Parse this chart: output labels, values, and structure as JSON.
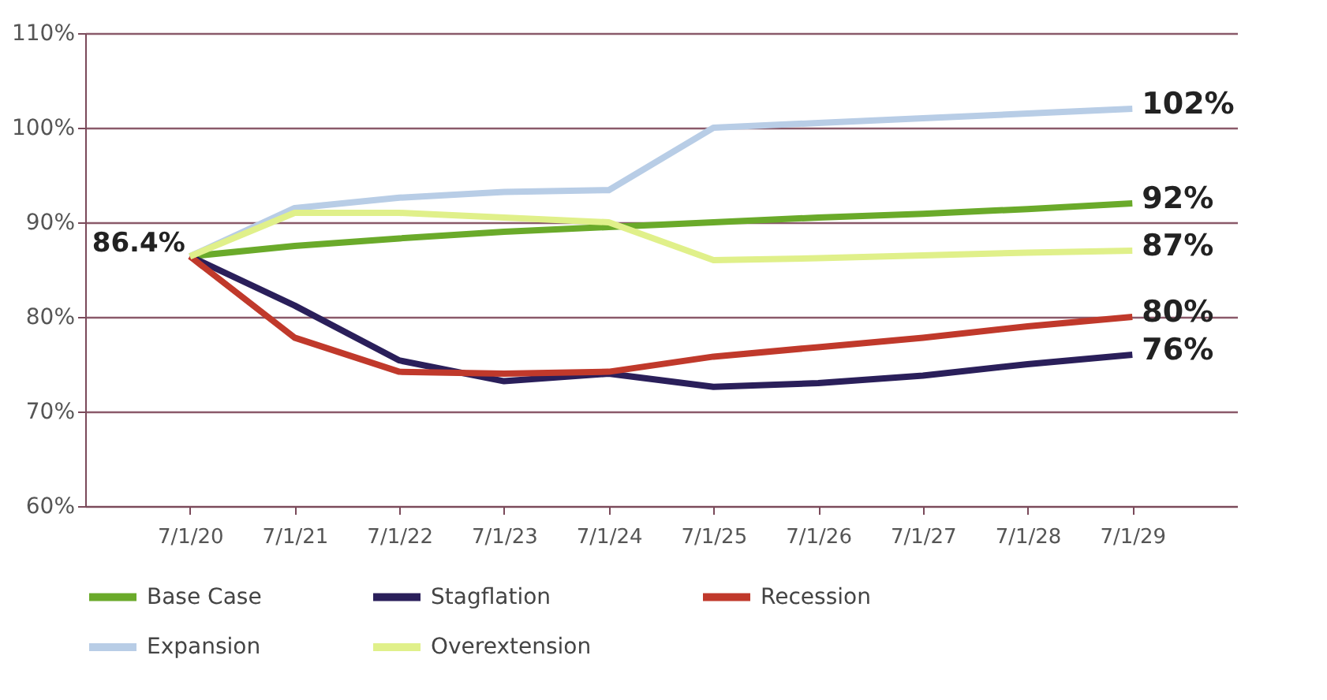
{
  "chart_data": {
    "type": "line",
    "categories": [
      "7/1/20",
      "7/1/21",
      "7/1/22",
      "7/1/23",
      "7/1/24",
      "7/1/25",
      "7/1/26",
      "7/1/27",
      "7/1/28",
      "7/1/29"
    ],
    "ylim": [
      60,
      110
    ],
    "yticks": [
      {
        "value": 60,
        "label": "60%"
      },
      {
        "value": 70,
        "label": "70%"
      },
      {
        "value": 80,
        "label": "80%"
      },
      {
        "value": 90,
        "label": "90%"
      },
      {
        "value": 100,
        "label": "100%"
      },
      {
        "value": 110,
        "label": "110%"
      }
    ],
    "grid": "y",
    "legend": "bottom",
    "marker": "none",
    "line_style": "solid",
    "series": [
      {
        "name": "Base Case",
        "color": "#6aaa2a",
        "values": [
          86.4,
          87.5,
          88.3,
          89,
          89.5,
          90,
          90.5,
          90.9,
          91.4,
          92
        ],
        "value_labels": [
          null,
          null,
          null,
          null,
          null,
          null,
          null,
          null,
          null,
          "92%"
        ]
      },
      {
        "name": "Stagflation",
        "color": "#2a1f5a",
        "values": [
          86.4,
          81.2,
          75.4,
          73.2,
          74,
          72.6,
          73,
          73.8,
          75,
          76
        ],
        "value_labels": [
          null,
          null,
          null,
          null,
          null,
          null,
          null,
          null,
          null,
          "76%"
        ]
      },
      {
        "name": "Recession",
        "color": "#c0392b",
        "values": [
          86.4,
          77.8,
          74.2,
          74,
          74.2,
          75.8,
          76.8,
          77.8,
          79,
          80
        ],
        "value_labels": [
          null,
          null,
          null,
          null,
          null,
          null,
          null,
          null,
          null,
          "80%"
        ]
      },
      {
        "name": "Expansion",
        "color": "#b8cde6",
        "values": [
          86.4,
          91.5,
          92.6,
          93.2,
          93.4,
          100,
          100.5,
          101,
          101.5,
          102
        ],
        "value_labels": [
          null,
          null,
          null,
          null,
          null,
          null,
          null,
          null,
          null,
          "102%"
        ]
      },
      {
        "name": "Overextension",
        "color": "#e0f08a",
        "values": [
          86.4,
          91,
          91,
          90.5,
          90,
          86,
          86.2,
          86.5,
          86.8,
          87
        ],
        "value_labels": [
          null,
          null,
          null,
          null,
          null,
          null,
          null,
          null,
          null,
          "87%"
        ]
      }
    ],
    "annotations": [
      {
        "text": "86.4%",
        "x": "7/1/20",
        "y": 86.4
      }
    ]
  }
}
